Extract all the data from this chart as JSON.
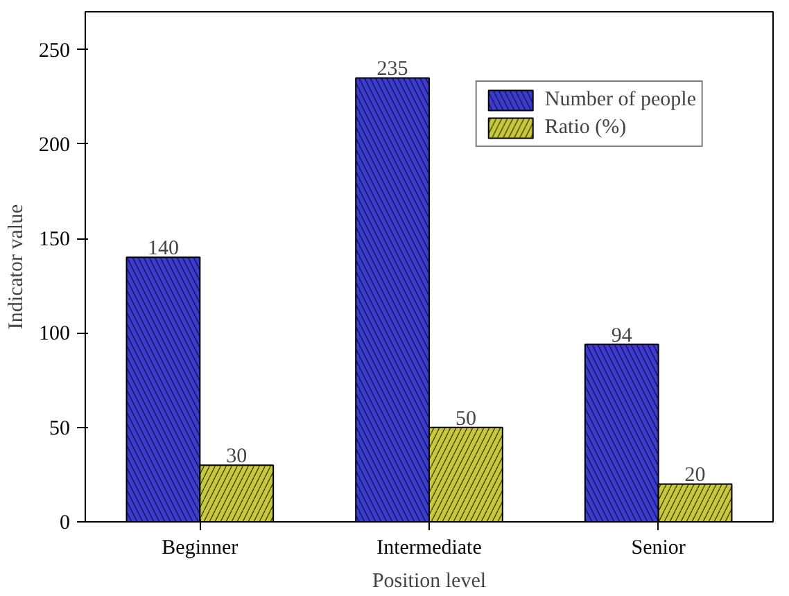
{
  "chart_data": {
    "type": "bar",
    "xlabel": "Position level",
    "ylabel": "Indicator value",
    "categories": [
      "Beginner",
      "Intermediate",
      "Senior"
    ],
    "series": [
      {
        "name": "Number of people",
        "color": "#3c3cd2",
        "values": [
          140,
          235,
          94
        ]
      },
      {
        "name": "Ratio (%)",
        "color": "#c8c83c",
        "values": [
          30,
          50,
          20
        ]
      }
    ],
    "ylim": [
      0,
      270
    ],
    "yticks": [
      0,
      50,
      100,
      150,
      200,
      250
    ],
    "data_labels": true,
    "legend": "top right",
    "grid": false
  }
}
